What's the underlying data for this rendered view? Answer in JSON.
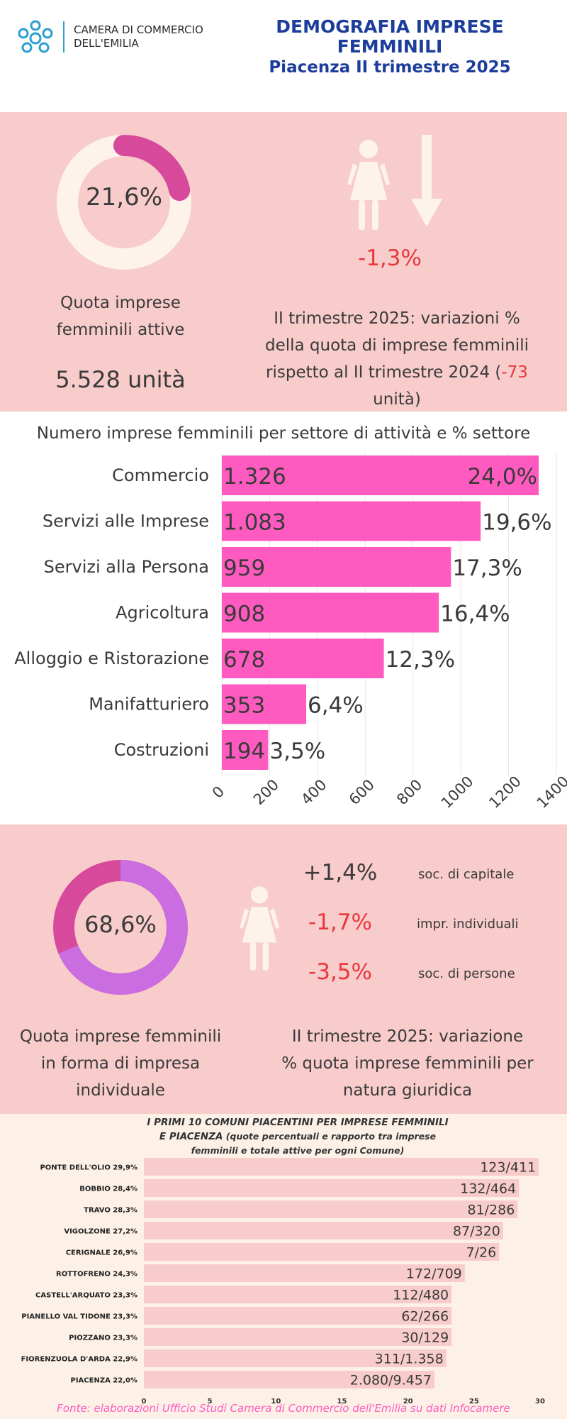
{
  "header": {
    "logo_line1": "CAMERA DI COMMERCIO",
    "logo_line2": "DELL'EMILIA",
    "title_line1": "DEMOGRAFIA IMPRESE",
    "title_line2": "FEMMINILI",
    "title_line3": "Piacenza II trimestre 2025"
  },
  "quota": {
    "pct": "21,6%",
    "value": 21.6,
    "caption_line1": "Quota imprese",
    "caption_line2": "femminili attive",
    "units": "5.528 unità"
  },
  "variazione": {
    "pct": "-1,3%",
    "line1": "II trimestre 2025: variazioni %",
    "line2": "della quota di imprese femminili",
    "line3a": "rispetto al II trimestre 2024 (",
    "line3b": "-73",
    "line4": "unità)"
  },
  "chart_data": [
    {
      "type": "bar",
      "orientation": "horizontal",
      "title": "Numero imprese femminili per settore di attività e % settore",
      "categories": [
        "Commercio",
        "Servizi alle Imprese",
        "Servizi alla Persona",
        "Agricoltura",
        "Alloggio e Ristorazione",
        "Manifatturiero",
        "Costruzioni"
      ],
      "values": [
        1326,
        1083,
        959,
        908,
        678,
        353,
        194
      ],
      "value_labels": [
        "1.326",
        "1.083",
        "959",
        "908",
        "678",
        "353",
        "194"
      ],
      "pct_labels": [
        "24,0%",
        "19,6%",
        "17,3%",
        "16,4%",
        "12,3%",
        "6,4%",
        "3,5%"
      ],
      "xlim": [
        0,
        1400
      ],
      "xticks": [
        "0",
        "200",
        "400",
        "600",
        "800",
        "1000",
        "1200",
        "1400"
      ],
      "grid": true
    },
    {
      "type": "bar",
      "orientation": "horizontal",
      "title": "I PRIMI 10 COMUNI PIACENTINI PER IMPRESE FEMMINILI E PIACENZA (quote percentuali e rapporto tra imprese femminili e totale attive per ogni Comune)",
      "title_line1": "I PRIMI 10 COMUNI PIACENTINI PER IMPRESE FEMMINILI",
      "title_line2a": "E PIACENZA",
      "title_line2b": " (quote percentuali e rapporto tra imprese",
      "title_line3": "femminili e totale attive per ogni Comune)",
      "categories": [
        "PONTE DELL'OLIO 29,9%",
        "BOBBIO 28,4%",
        "TRAVO 28,3%",
        "VIGOLZONE 27,2%",
        "CERIGNALE 26,9%",
        "ROTTOFRENO 24,3%",
        "CASTELL'ARQUATO 23,3%",
        "PIANELLO VAL TIDONE 23,3%",
        "PIOZZANO 23,3%",
        "FIORENZUOLA D'ARDA 22,9%",
        "PIACENZA 22,0%"
      ],
      "values": [
        29.9,
        28.4,
        28.3,
        27.2,
        26.9,
        24.3,
        23.3,
        23.3,
        23.3,
        22.9,
        22.0
      ],
      "ratio_labels": [
        "123/411",
        "132/464",
        "81/286",
        "87/320",
        "7/26",
        "172/709",
        "112/480",
        "62/266",
        "30/129",
        "311/1.358",
        "2.080/9.457"
      ],
      "xlim": [
        0,
        30
      ],
      "xticks": [
        "0",
        "5",
        "10",
        "15",
        "20",
        "25",
        "30"
      ]
    }
  ],
  "individuale": {
    "pct": "68,6%",
    "value": 68.6,
    "caption_line1": "Quota imprese femminili",
    "caption_line2": "in forma di impresa",
    "caption_line3": "individuale"
  },
  "natura": {
    "rows": [
      {
        "value": "+1,4%",
        "label": "soc. di capitale"
      },
      {
        "value": "-1,7%",
        "label": "impr. individuali"
      },
      {
        "value": "-3,5%",
        "label": "soc. di persone"
      }
    ],
    "caption_line1": "II trimestre 2025: variazione",
    "caption_line2": "% quota imprese femminili per",
    "caption_line3": "natura giuridica"
  },
  "source": "Fonte: elaborazioni Ufficio Studi Camera di Commercio  dell'Emilia su dati Infocamere",
  "colors": {
    "navy": "#1c3d9c",
    "pink_bg": "#f8cccb",
    "bar_pink": "#ff5ac0",
    "donut_pink": "#d74a9b",
    "donut_violet": "#c96de0",
    "negative_red": "#e8383d",
    "cream": "#fdf1e7"
  },
  "icons": [
    "logo-icon",
    "woman-icon",
    "down-arrow-icon"
  ]
}
